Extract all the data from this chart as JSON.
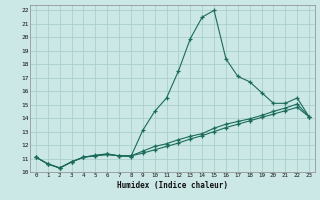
{
  "xlabel": "Humidex (Indice chaleur)",
  "background_color": "#cce8e6",
  "grid_color": "#aacfcd",
  "line_color": "#1a6b5a",
  "xlim": [
    -0.5,
    23.5
  ],
  "ylim": [
    10,
    22.4
  ],
  "xticks": [
    0,
    1,
    2,
    3,
    4,
    5,
    6,
    7,
    8,
    9,
    10,
    11,
    12,
    13,
    14,
    15,
    16,
    17,
    18,
    19,
    20,
    21,
    22,
    23
  ],
  "yticks": [
    10,
    11,
    12,
    13,
    14,
    15,
    16,
    17,
    18,
    19,
    20,
    21,
    22
  ],
  "series1_x": [
    0,
    1,
    2,
    3,
    4,
    5,
    6,
    7,
    8,
    9,
    10,
    11,
    12,
    13,
    14,
    15,
    16,
    17,
    18,
    19,
    20,
    21,
    22,
    23
  ],
  "series1_y": [
    11.1,
    10.6,
    10.3,
    10.75,
    11.1,
    11.25,
    11.35,
    11.2,
    11.15,
    13.1,
    14.5,
    15.5,
    17.5,
    19.9,
    21.5,
    22.0,
    18.4,
    17.1,
    16.7,
    15.9,
    15.1,
    15.1,
    15.5,
    14.1
  ],
  "series2_x": [
    0,
    1,
    2,
    3,
    4,
    5,
    6,
    7,
    8,
    9,
    10,
    11,
    12,
    13,
    14,
    15,
    16,
    17,
    18,
    19,
    20,
    21,
    22,
    23
  ],
  "series2_y": [
    11.1,
    10.6,
    10.3,
    10.75,
    11.1,
    11.2,
    11.3,
    11.2,
    11.2,
    11.4,
    11.65,
    11.9,
    12.15,
    12.45,
    12.7,
    13.0,
    13.3,
    13.55,
    13.8,
    14.05,
    14.3,
    14.55,
    14.8,
    14.1
  ],
  "series3_x": [
    0,
    1,
    2,
    3,
    4,
    5,
    6,
    7,
    8,
    9,
    10,
    11,
    12,
    13,
    14,
    15,
    16,
    17,
    18,
    19,
    20,
    21,
    22,
    23
  ],
  "series3_y": [
    11.1,
    10.6,
    10.3,
    10.75,
    11.1,
    11.2,
    11.3,
    11.2,
    11.2,
    11.55,
    11.9,
    12.1,
    12.4,
    12.65,
    12.85,
    13.25,
    13.55,
    13.75,
    13.95,
    14.2,
    14.5,
    14.75,
    15.05,
    14.1
  ]
}
